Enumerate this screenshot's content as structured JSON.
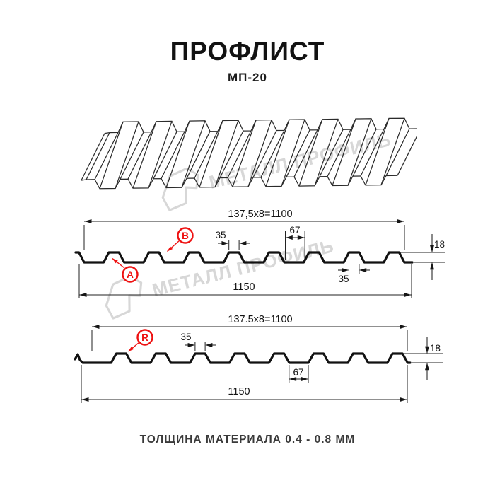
{
  "header": {
    "title": "ПРОФЛИСТ",
    "subtitle": "МП-20"
  },
  "watermark": {
    "text": "МЕТАЛЛ ПРОФИЛЬ",
    "logo_icon": "metal-profil-logo-icon"
  },
  "sections": [
    {
      "name": "cross-section-with-A-B",
      "total_width": "137,5x8=1100",
      "rib_top_width": "35",
      "valley_width": "67",
      "height": "18",
      "rib_bottom_width": "35",
      "overall_width": "1150",
      "label_a": "A",
      "label_b": "B"
    },
    {
      "name": "cross-section-with-R",
      "total_width": "137.5x8=1100",
      "rib_top_width": "35",
      "valley_width": "67",
      "height": "18",
      "overall_width": "1150",
      "label_r": "R"
    }
  ],
  "footer": {
    "text": "ТОЛЩИНА МАТЕРИАЛА 0.4 - 0.8 ММ"
  },
  "colors": {
    "accent_red": "#ee1111",
    "line": "#161616",
    "watermark": "#d7d7d7"
  }
}
